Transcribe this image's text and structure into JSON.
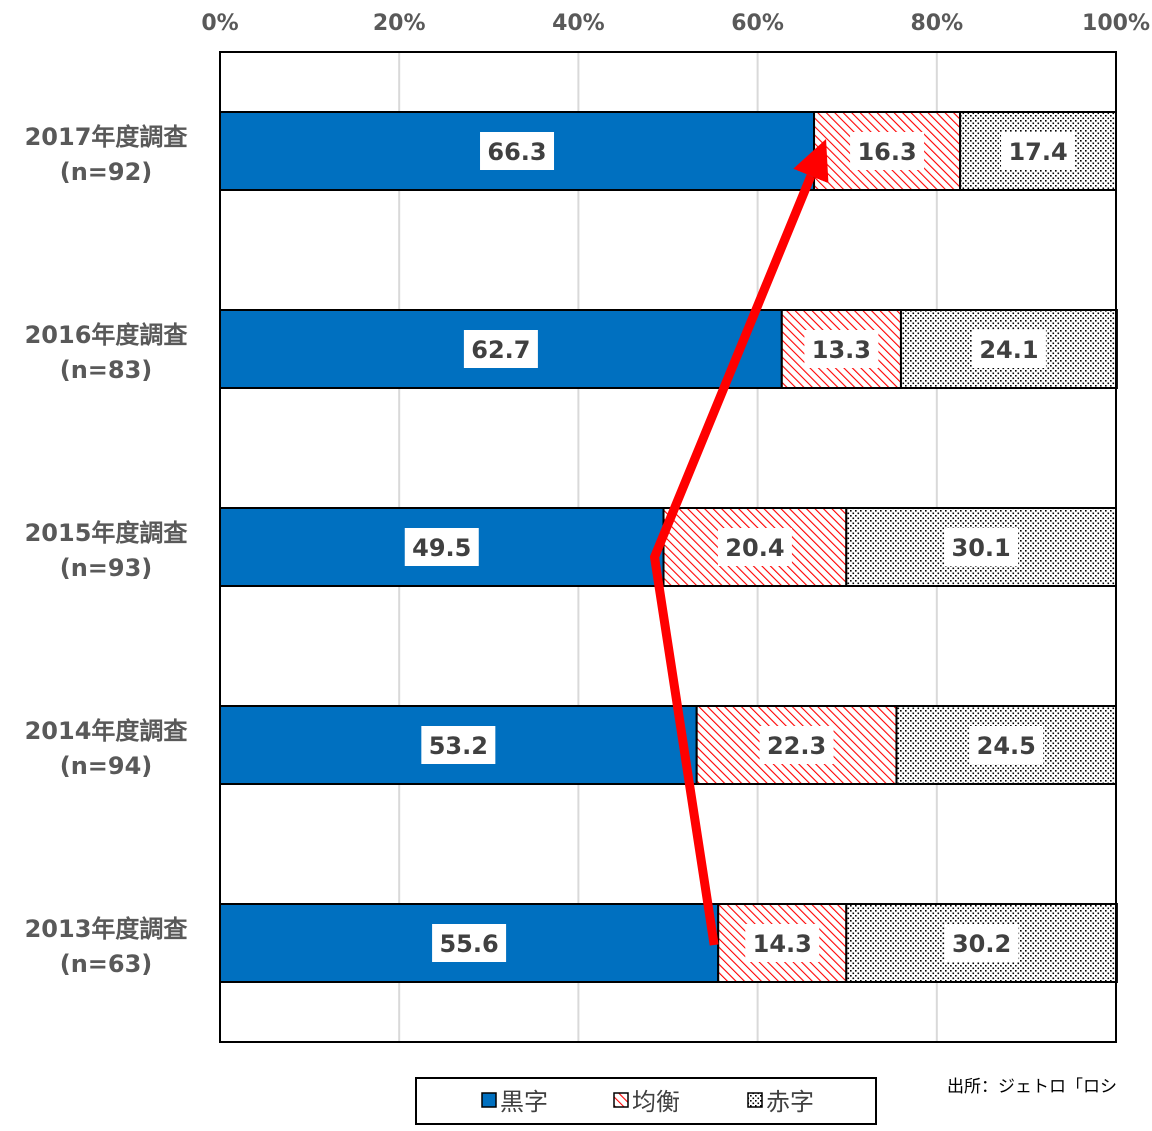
{
  "chart_data": {
    "type": "bar",
    "orientation": "horizontal",
    "stacked": "percent",
    "categories": [
      {
        "year": "2017年度調査",
        "n": "(n=92)"
      },
      {
        "year": "2016年度調査",
        "n": "(n=83)"
      },
      {
        "year": "2015年度調査",
        "n": "(n=93)"
      },
      {
        "year": "2014年度調査",
        "n": "(n=94)"
      },
      {
        "year": "2013年度調査",
        "n": "(n=63)"
      }
    ],
    "series": [
      {
        "name": "黒字",
        "values": [
          66.3,
          62.7,
          49.5,
          53.2,
          55.6
        ],
        "value_labels": [
          "66.3",
          "62.7",
          "49.5",
          "53.2",
          "55.6"
        ],
        "color": "#0070C0",
        "pattern": "solid"
      },
      {
        "name": "均衡",
        "values": [
          16.3,
          13.3,
          20.4,
          22.3,
          14.3
        ],
        "value_labels": [
          "16.3",
          "13.3",
          "20.4",
          "22.3",
          "14.3"
        ],
        "color": "#FF0000",
        "pattern": "diagonal-hatch"
      },
      {
        "name": "赤字",
        "values": [
          17.4,
          24.1,
          30.1,
          24.5,
          30.2
        ],
        "value_labels": [
          "17.4",
          "24.1",
          "30.1",
          "24.5",
          "30.2"
        ],
        "color": "#000000",
        "pattern": "dots"
      }
    ],
    "x_ticks": [
      "0%",
      "20%",
      "40%",
      "60%",
      "80%",
      "100%"
    ],
    "xlim": [
      0,
      100
    ],
    "grid": true,
    "legend_position": "bottom",
    "trend_arrow": {
      "color": "#FF0000",
      "follows_series": "黒字",
      "direction": "2013年度調査 to 2017年度調査"
    },
    "source_note": "出所：ジェトロ「ロシ"
  }
}
